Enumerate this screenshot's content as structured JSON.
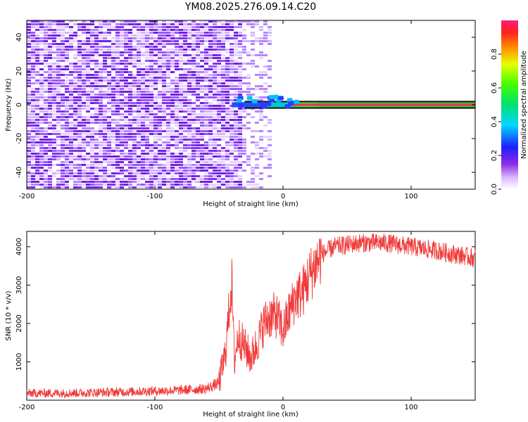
{
  "title": "YM08.2025.276.09.14.C20",
  "chart_data": [
    {
      "type": "heatmap",
      "xlabel": "Height of straight line (km)",
      "ylabel": "Frequency (Hz)",
      "xlim": [
        -200,
        150
      ],
      "ylim": [
        -50,
        50
      ],
      "x_ticks": [
        -200,
        -100,
        0,
        100
      ],
      "y_ticks": [
        -40,
        -20,
        0,
        20,
        40
      ],
      "colorbar": {
        "label": "Normalized spectral amplitude",
        "range": [
          0,
          1
        ],
        "ticks": [
          "0.0",
          "0.2",
          "0.4",
          "0.6",
          "0.8"
        ]
      },
      "noise_region_x": [
        -200,
        -12
      ],
      "signal_band": {
        "frequency_center": 0,
        "frequency_halfwidth": 1.5,
        "x_start": -40,
        "x_end": 150,
        "segments": [
          {
            "x": [
              -40,
              -15
            ],
            "amplitude": 0.3
          },
          {
            "x": [
              -15,
              10
            ],
            "amplitude": 0.55
          },
          {
            "x": [
              10,
              28
            ],
            "amplitude": 0.9
          },
          {
            "x": [
              28,
              150
            ],
            "amplitude": 0.95
          }
        ]
      }
    },
    {
      "type": "line",
      "xlabel": "Height of straight line (km)",
      "ylabel": "SNR (10 * v/v)",
      "xlim": [
        -200,
        150
      ],
      "ylim": [
        0,
        4400
      ],
      "x_ticks": [
        -200,
        -100,
        0,
        100
      ],
      "y_ticks": [
        1000,
        2000,
        3000,
        4000
      ],
      "color": "#f03a3a",
      "series": [
        {
          "x": [
            -200,
            -160,
            -120,
            -80,
            -60,
            -50,
            -45,
            -42,
            -40,
            -38,
            -35,
            -30,
            -25,
            -20,
            -15,
            -10,
            -5,
            0,
            5,
            10,
            15,
            20,
            25,
            30,
            40,
            50,
            60,
            80,
            100,
            120,
            150
          ],
          "y": [
            180,
            190,
            220,
            260,
            300,
            450,
            1200,
            2400,
            3100,
            1000,
            1700,
            1400,
            1100,
            1500,
            2000,
            2200,
            2200,
            1800,
            2300,
            2700,
            2800,
            3200,
            3500,
            3800,
            4000,
            4050,
            4100,
            4100,
            4000,
            3900,
            3700
          ]
        }
      ]
    }
  ]
}
